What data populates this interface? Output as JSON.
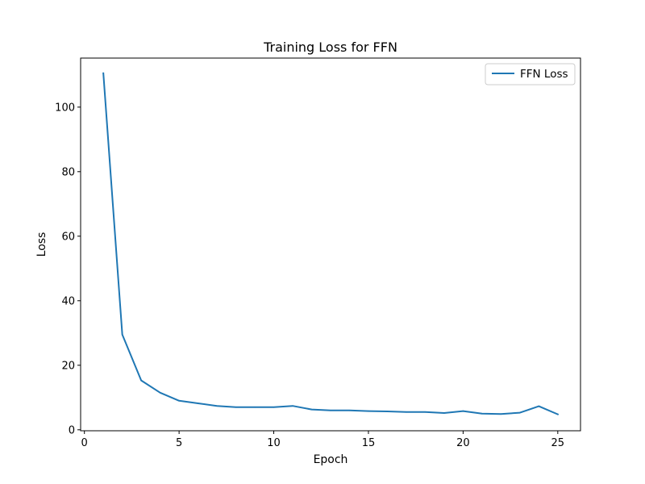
{
  "chart_data": {
    "type": "line",
    "title": "Training Loss for FFN",
    "xlabel": "Epoch",
    "ylabel": "Loss",
    "xlim": [
      -0.2,
      26.2
    ],
    "ylim": [
      -0.3,
      115.2
    ],
    "xticks": [
      0,
      5,
      10,
      15,
      20,
      25
    ],
    "yticks": [
      0,
      20,
      40,
      60,
      80,
      100
    ],
    "grid": false,
    "legend_position": "top-right",
    "series": [
      {
        "name": "FFN Loss",
        "color": "#1f77b4",
        "x": [
          1,
          2,
          3,
          4,
          5,
          6,
          7,
          8,
          9,
          10,
          11,
          12,
          13,
          14,
          15,
          16,
          17,
          18,
          19,
          20,
          21,
          22,
          23,
          24,
          25
        ],
        "y": [
          110.5,
          29.5,
          15.3,
          11.5,
          9.0,
          8.2,
          7.4,
          7.0,
          7.0,
          7.0,
          7.4,
          6.3,
          6.0,
          6.0,
          5.8,
          5.7,
          5.5,
          5.5,
          5.2,
          5.8,
          5.0,
          4.9,
          5.3,
          7.3,
          4.8
        ]
      }
    ]
  }
}
